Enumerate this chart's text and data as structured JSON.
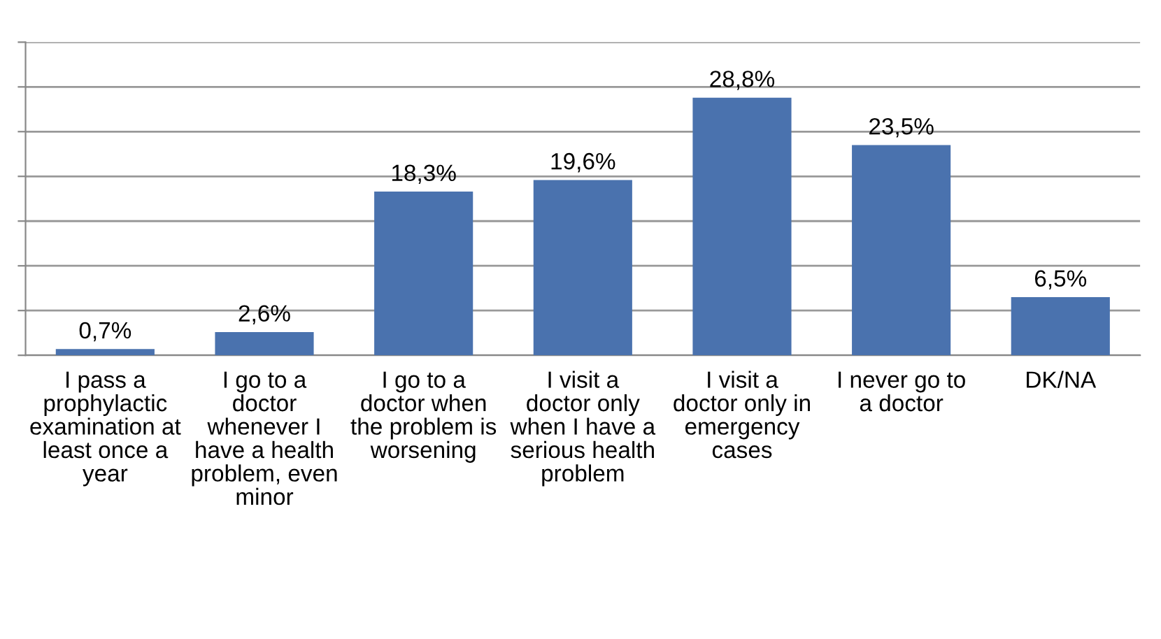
{
  "chart_data": {
    "type": "bar",
    "categories": [
      "I pass a prophylactic examination at least once a year",
      "I go to a doctor whenever I have a health problem, even minor",
      "I go to a doctor when the problem is worsening",
      "I visit a doctor only when I have a serious health problem",
      "I visit a doctor only in emergency cases",
      "I never go to a doctor",
      "DK/NA"
    ],
    "values": [
      0.7,
      2.6,
      18.3,
      19.6,
      28.8,
      23.5,
      6.5
    ],
    "value_labels": [
      "0,7%",
      "2,6%",
      "18,3%",
      "19,6%",
      "28,8%",
      "23,5%",
      "6,5%"
    ],
    "color": "#4a72ae",
    "ylim": [
      0,
      35
    ],
    "yticks": [
      {
        "value": 0,
        "label": null
      },
      {
        "value": 5,
        "label": null
      },
      {
        "value": 10,
        "label": null
      },
      {
        "value": 15,
        "label": null
      },
      {
        "value": 20,
        "label": null
      },
      {
        "value": 25,
        "label": null
      },
      {
        "value": 30,
        "label": null
      },
      {
        "value": 35,
        "label": null
      }
    ],
    "grid": "y",
    "tick_labels": "x"
  }
}
